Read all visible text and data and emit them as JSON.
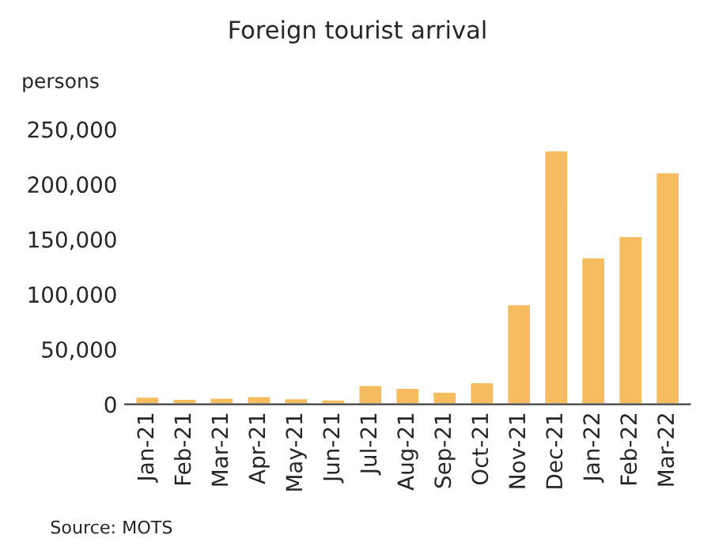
{
  "chart_data": {
    "type": "bar",
    "title": "Foreign tourist arrival",
    "ylabel": "persons",
    "categories": [
      "Jan-21",
      "Feb-21",
      "Mar-21",
      "Apr-21",
      "May-21",
      "Jun-21",
      "Jul-21",
      "Aug-21",
      "Sep-21",
      "Oct-21",
      "Nov-21",
      "Dec-21",
      "Jan-22",
      "Feb-22",
      "Mar-22"
    ],
    "values": [
      7000,
      5000,
      6000,
      7500,
      5500,
      4500,
      17500,
      15000,
      11500,
      20000,
      91000,
      231000,
      133500,
      153000,
      211000
    ],
    "color": "#f6bd60",
    "ylim": [
      0,
      250000
    ],
    "yticks": [
      {
        "value": 0,
        "label": "0"
      },
      {
        "value": 50000,
        "label": "50,000"
      },
      {
        "value": 100000,
        "label": "100,000"
      },
      {
        "value": 150000,
        "label": "150,000"
      },
      {
        "value": 200000,
        "label": "200,000"
      },
      {
        "value": 250000,
        "label": "250,000"
      }
    ],
    "grid": false,
    "annotations": [
      "Source: MOTS"
    ]
  }
}
